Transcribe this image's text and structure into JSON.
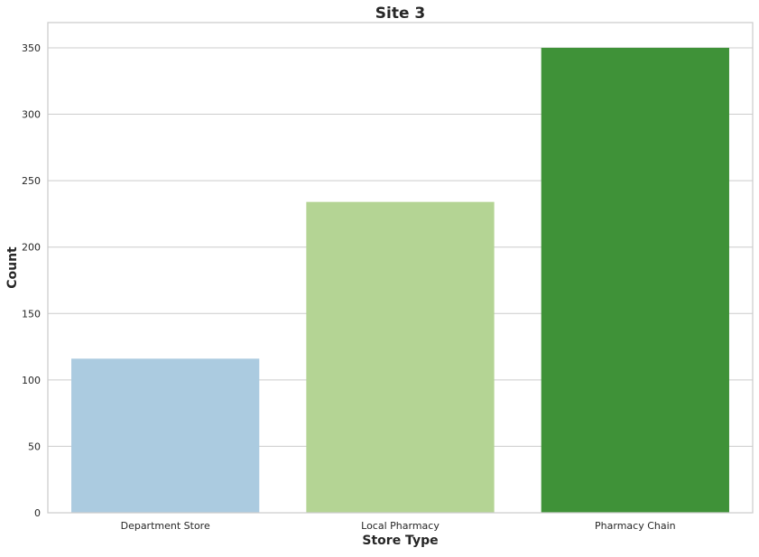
{
  "chart_data": {
    "type": "bar",
    "title": "Site 3",
    "xlabel": "Store Type",
    "ylabel": "Count",
    "categories": [
      "Department Store",
      "Local Pharmacy",
      "Pharmacy Chain"
    ],
    "values": [
      116,
      234,
      350
    ],
    "colors": [
      "#abcbe0",
      "#b4d494",
      "#3f9238"
    ],
    "ylim": [
      0,
      369
    ],
    "yticks": [
      0,
      50,
      100,
      150,
      200,
      250,
      300,
      350
    ],
    "grid": "horizontal"
  }
}
